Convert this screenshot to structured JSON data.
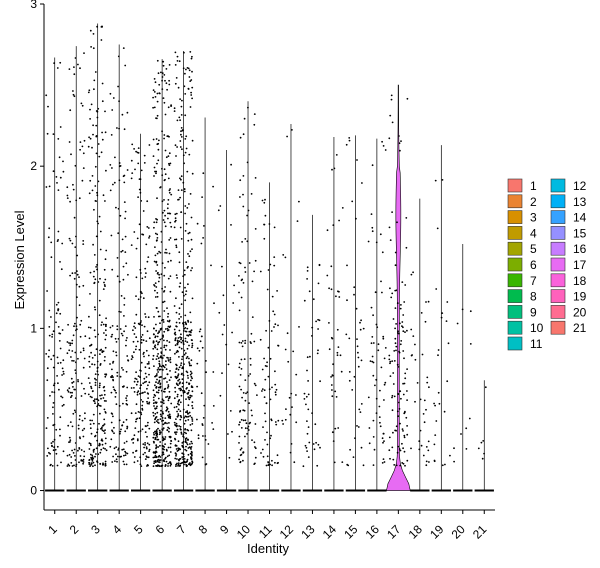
{
  "chart_data": {
    "type": "violin",
    "xlabel": "Identity",
    "ylabel": "Expression Level",
    "ylim": [
      -0.12,
      3.0
    ],
    "yticks": [
      0,
      1,
      2,
      3
    ],
    "categories": [
      "1",
      "2",
      "3",
      "4",
      "5",
      "6",
      "7",
      "8",
      "9",
      "10",
      "11",
      "12",
      "13",
      "14",
      "15",
      "16",
      "17",
      "18",
      "19",
      "20",
      "21"
    ],
    "colors": [
      "#F8766D",
      "#EA8331",
      "#D89000",
      "#C09B00",
      "#A3A500",
      "#7CAE00",
      "#39B600",
      "#00BB4E",
      "#00BF7D",
      "#00C1A3",
      "#00BFC4",
      "#00BAE0",
      "#00B0F6",
      "#35A2FF",
      "#9590FF",
      "#C77CFF",
      "#E76BF3",
      "#FA62DB",
      "#FF62BC",
      "#FF6C91",
      "#F8766D"
    ],
    "max_values": [
      2.67,
      2.74,
      2.88,
      2.75,
      2.2,
      2.66,
      2.71,
      2.3,
      2.1,
      2.4,
      1.9,
      2.26,
      1.7,
      2.18,
      2.19,
      2.17,
      2.5,
      1.8,
      2.13,
      1.52,
      0.68
    ],
    "expressing_cells": [
      110,
      160,
      260,
      160,
      200,
      500,
      470,
      40,
      20,
      110,
      80,
      25,
      45,
      40,
      40,
      60,
      120,
      35,
      25,
      10,
      6
    ],
    "legend": {
      "position": "right",
      "columns": [
        [
          "1",
          "2",
          "3",
          "4",
          "5",
          "6",
          "7",
          "8",
          "9",
          "10",
          "11"
        ],
        [
          "12",
          "13",
          "14",
          "15",
          "16",
          "17",
          "18",
          "19",
          "20",
          "21"
        ]
      ]
    },
    "grid": false
  }
}
